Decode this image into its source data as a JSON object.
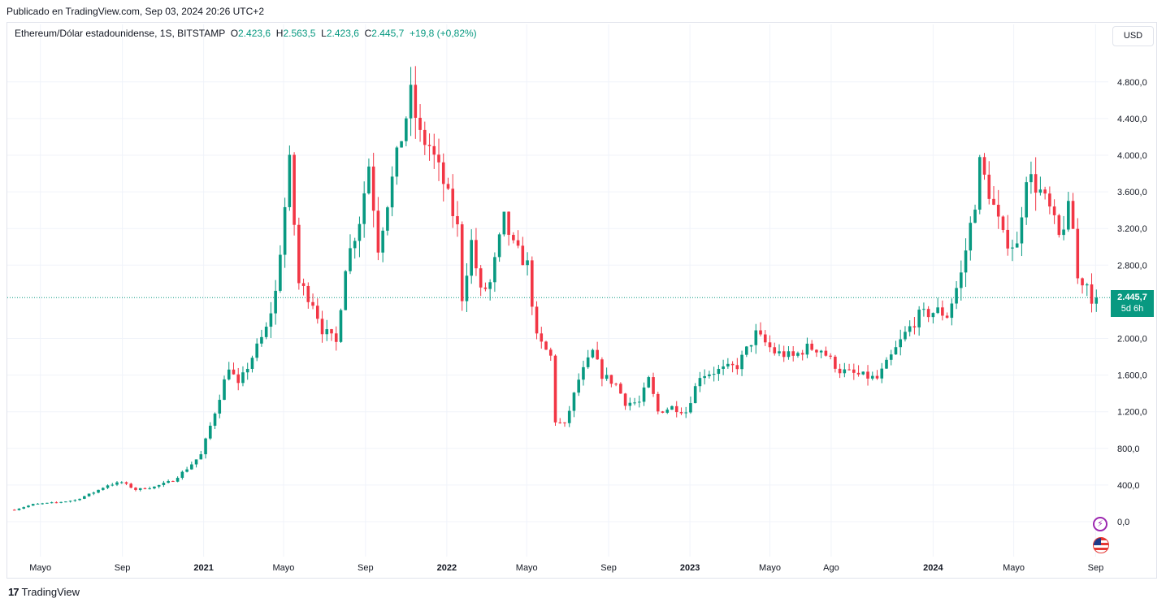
{
  "header": {
    "published": "Publicado en TradingView.com, Sep 03, 2024 20:26 UTC+2"
  },
  "legend": {
    "symbol": "Ethereum/Dólar estadounidense, 1S, BITSTAMP",
    "o_label": "O",
    "o_value": "2.423,6",
    "h_label": "H",
    "h_value": "2.563,5",
    "l_label": "L",
    "l_value": "2.423,6",
    "c_label": "C",
    "c_value": "2.445,7",
    "change": "+19,8 (+0,82%)"
  },
  "currency_button": "USD",
  "price_tag": {
    "price": "2.445,7",
    "countdown": "5d 6h"
  },
  "brand": {
    "logo": "17",
    "name": "TradingView"
  },
  "icons": {
    "bolt": "lightning-icon",
    "flag": "us-flag-icon"
  },
  "colors": {
    "up": "#089981",
    "down": "#f23645",
    "grid": "#f0f3fa",
    "accent": "#089981"
  },
  "chart_data": {
    "type": "candlestick",
    "title": "",
    "y_ticks": [
      "4.800,0",
      "4.400,0",
      "4.000,0",
      "3.600,0",
      "3.200,0",
      "2.800,0",
      "2.000,0",
      "1.600,0",
      "1.200,0",
      "800,0",
      "400,0",
      "0,0"
    ],
    "x_ticks": [
      {
        "label": "Mayo",
        "bold": false
      },
      {
        "label": "Sep",
        "bold": false
      },
      {
        "label": "2021",
        "bold": true
      },
      {
        "label": "Mayo",
        "bold": false
      },
      {
        "label": "Sep",
        "bold": false
      },
      {
        "label": "2022",
        "bold": true
      },
      {
        "label": "Mayo",
        "bold": false
      },
      {
        "label": "Sep",
        "bold": false
      },
      {
        "label": "2023",
        "bold": true
      },
      {
        "label": "Mayo",
        "bold": false
      },
      {
        "label": "Ago",
        "bold": false
      },
      {
        "label": "2024",
        "bold": true
      },
      {
        "label": "Mayo",
        "bold": false
      },
      {
        "label": "Sep",
        "bold": false
      }
    ],
    "ylim": [
      -400,
      5300
    ],
    "last_price": 2445.7,
    "close_path": [
      [
        "2020-03-23",
        130
      ],
      [
        "2020-04-20",
        190
      ],
      [
        "2020-05-25",
        210
      ],
      [
        "2020-06-22",
        235
      ],
      [
        "2020-07-20",
        320
      ],
      [
        "2020-08-10",
        400
      ],
      [
        "2020-08-31",
        430
      ],
      [
        "2020-09-21",
        350
      ],
      [
        "2020-10-19",
        380
      ],
      [
        "2020-11-16",
        450
      ],
      [
        "2020-12-07",
        580
      ],
      [
        "2020-12-28",
        730
      ],
      [
        "2021-01-18",
        1200
      ],
      [
        "2021-02-08",
        1700
      ],
      [
        "2021-02-22",
        1480
      ],
      [
        "2021-03-15",
        1800
      ],
      [
        "2021-04-05",
        2100
      ],
      [
        "2021-04-19",
        2500
      ],
      [
        "2021-05-10",
        3900
      ],
      [
        "2021-05-24",
        2600
      ],
      [
        "2021-06-14",
        2400
      ],
      [
        "2021-06-28",
        2100
      ],
      [
        "2021-07-19",
        1950
      ],
      [
        "2021-08-02",
        2800
      ],
      [
        "2021-08-23",
        3300
      ],
      [
        "2021-09-06",
        3900
      ],
      [
        "2021-09-20",
        3000
      ],
      [
        "2021-10-04",
        3500
      ],
      [
        "2021-10-25",
        4200
      ],
      [
        "2021-11-08",
        4650
      ],
      [
        "2021-11-22",
        4200
      ],
      [
        "2021-12-06",
        4100
      ],
      [
        "2021-12-27",
        3700
      ],
      [
        "2022-01-17",
        3200
      ],
      [
        "2022-01-24",
        2450
      ],
      [
        "2022-02-07",
        3050
      ],
      [
        "2022-02-21",
        2500
      ],
      [
        "2022-03-07",
        2600
      ],
      [
        "2022-03-28",
        3300
      ],
      [
        "2022-04-11",
        3000
      ],
      [
        "2022-05-02",
        2800
      ],
      [
        "2022-05-16",
        2000
      ],
      [
        "2022-06-06",
        1800
      ],
      [
        "2022-06-13",
        1100
      ],
      [
        "2022-06-27",
        1050
      ],
      [
        "2022-07-18",
        1550
      ],
      [
        "2022-08-08",
        1850
      ],
      [
        "2022-08-22",
        1600
      ],
      [
        "2022-09-12",
        1500
      ],
      [
        "2022-09-26",
        1300
      ],
      [
        "2022-10-17",
        1300
      ],
      [
        "2022-10-31",
        1550
      ],
      [
        "2022-11-14",
        1200
      ],
      [
        "2022-12-05",
        1250
      ],
      [
        "2022-12-26",
        1200
      ],
      [
        "2023-01-16",
        1600
      ],
      [
        "2023-02-13",
        1650
      ],
      [
        "2023-03-13",
        1700
      ],
      [
        "2023-04-10",
        2050
      ],
      [
        "2023-05-08",
        1850
      ],
      [
        "2023-06-05",
        1800
      ],
      [
        "2023-06-26",
        1900
      ],
      [
        "2023-07-17",
        1880
      ],
      [
        "2023-08-14",
        1650
      ],
      [
        "2023-09-11",
        1600
      ],
      [
        "2023-10-09",
        1560
      ],
      [
        "2023-10-30",
        1800
      ],
      [
        "2023-11-20",
        2050
      ],
      [
        "2023-12-11",
        2250
      ],
      [
        "2024-01-08",
        2300
      ],
      [
        "2024-01-22",
        2250
      ],
      [
        "2024-02-12",
        2700
      ],
      [
        "2024-03-04",
        3500
      ],
      [
        "2024-03-11",
        3900
      ],
      [
        "2024-03-25",
        3600
      ],
      [
        "2024-04-15",
        3100
      ],
      [
        "2024-05-06",
        3000
      ],
      [
        "2024-05-20",
        3800
      ],
      [
        "2024-06-10",
        3600
      ],
      [
        "2024-06-24",
        3400
      ],
      [
        "2024-07-08",
        3100
      ],
      [
        "2024-07-22",
        3400
      ],
      [
        "2024-07-29",
        3200
      ],
      [
        "2024-08-05",
        2650
      ],
      [
        "2024-08-19",
        2600
      ],
      [
        "2024-08-26",
        2450
      ],
      [
        "2024-09-02",
        2445.7
      ]
    ]
  }
}
